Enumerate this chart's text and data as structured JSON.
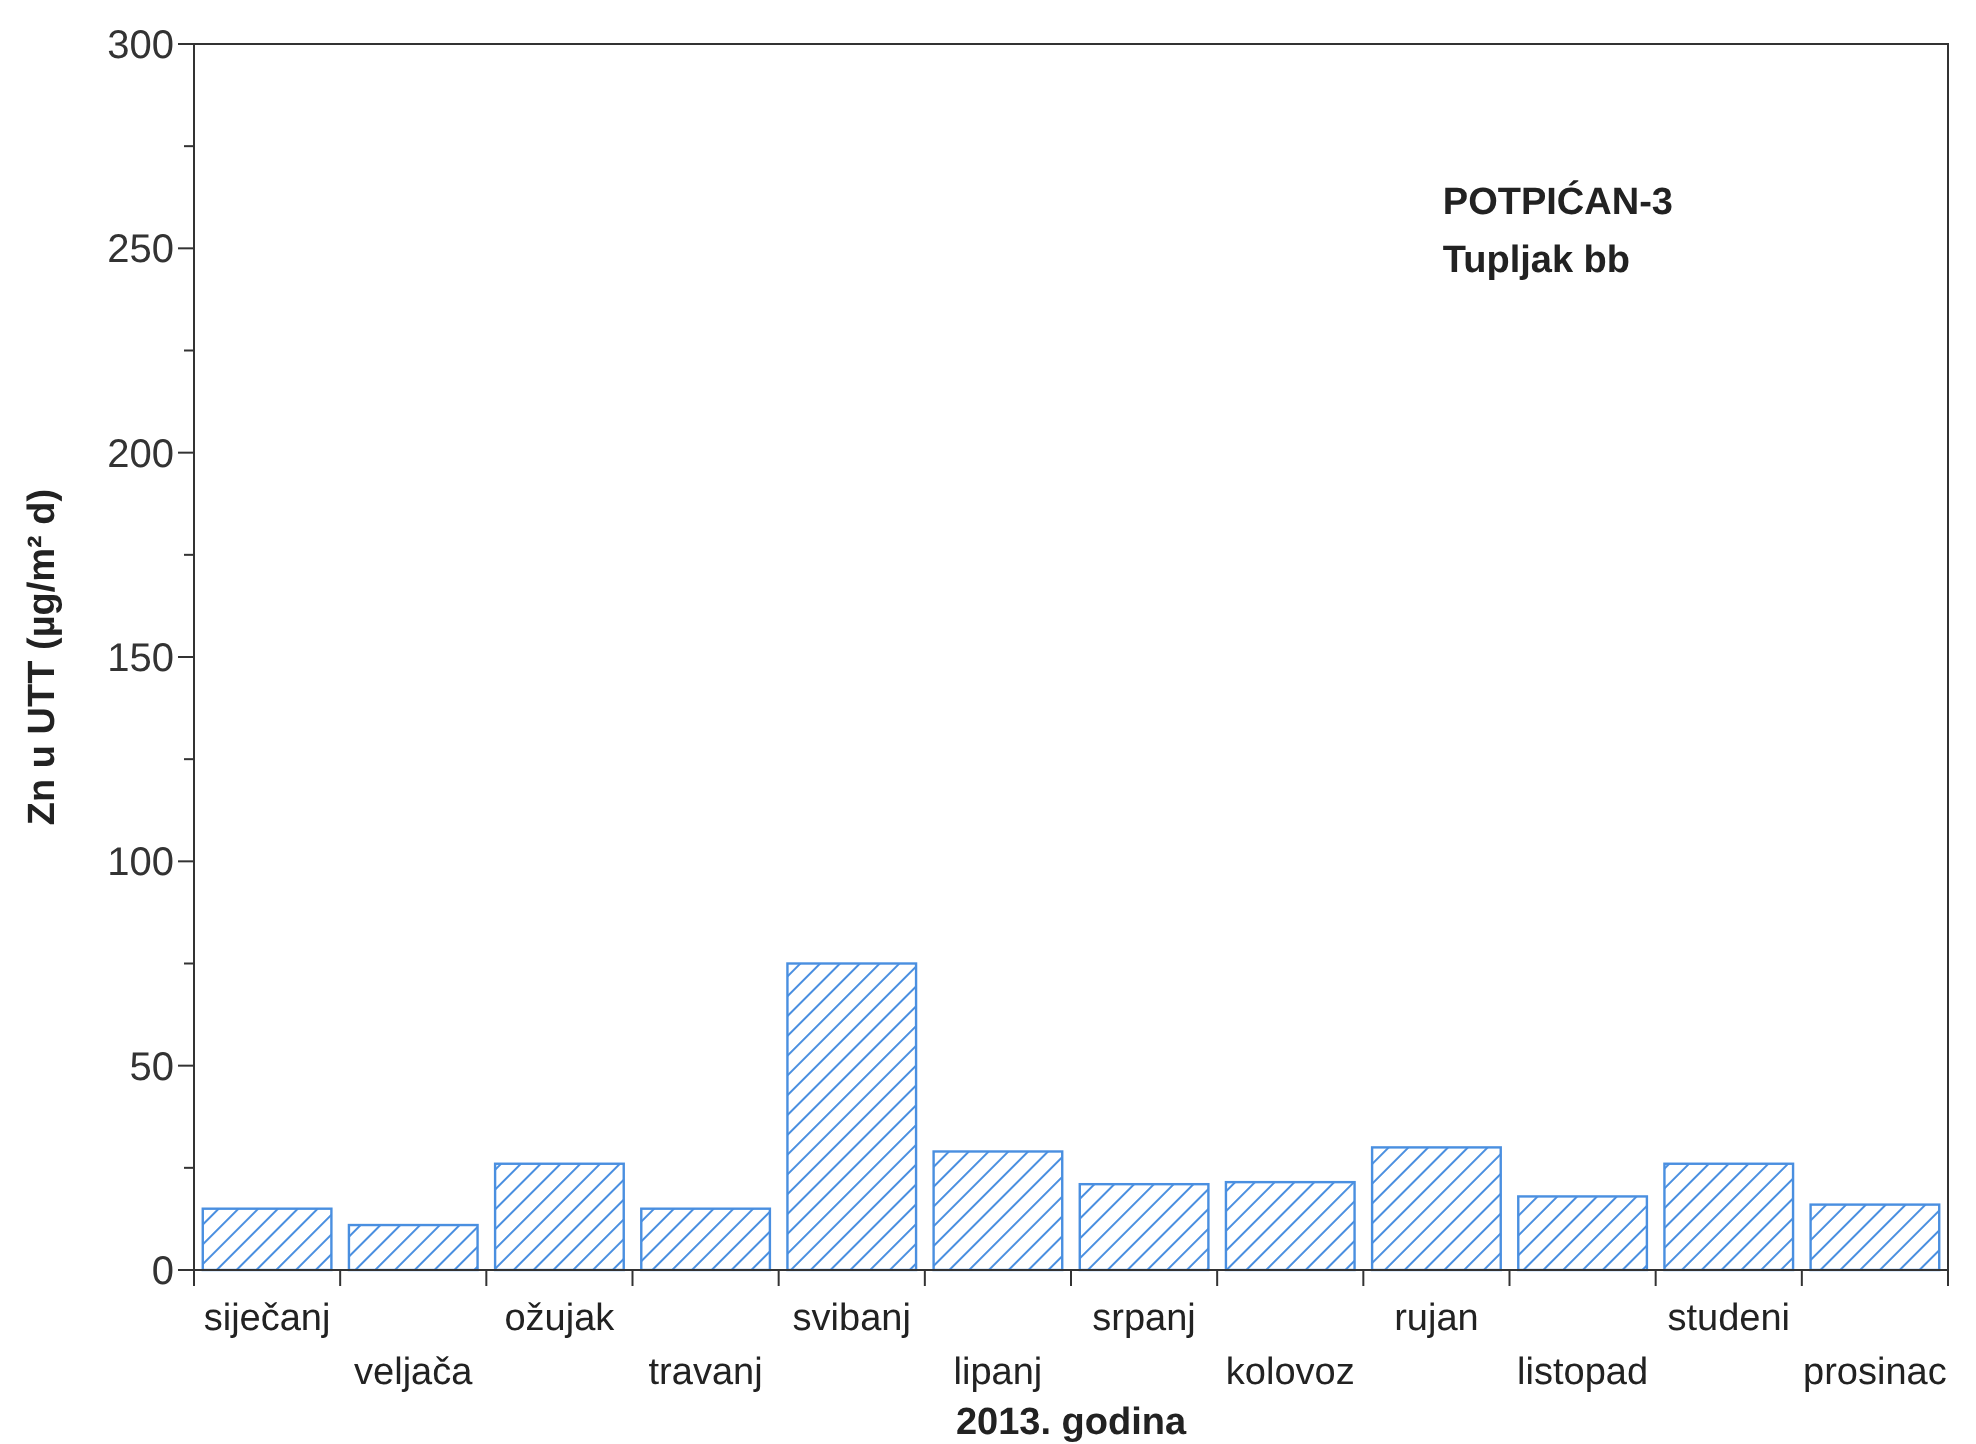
{
  "chart_data": {
    "type": "bar",
    "xlabel": "2013. godina",
    "ylabel": "Zn u UTT (µg/m² d)",
    "annotations": [
      "POTPIĆAN-3",
      "Tupljak bb"
    ],
    "categories": [
      "siječanj",
      "veljača",
      "ožujak",
      "travanj",
      "svibanj",
      "lipanj",
      "srpanj",
      "kolovoz",
      "rujan",
      "listopad",
      "studeni",
      "prosinac"
    ],
    "values": [
      15,
      11,
      26,
      15,
      75,
      29,
      21,
      21.5,
      30,
      18,
      26,
      16
    ],
    "color": "#4a8fe0",
    "ylim": [
      0,
      300
    ],
    "yticks": [
      0,
      {
        "value": 25,
        "label": null
      },
      50,
      {
        "value": 75,
        "label": null
      },
      100,
      {
        "value": 125,
        "label": null
      },
      150,
      {
        "value": 175,
        "label": null
      },
      200,
      {
        "value": 225,
        "label": null
      },
      250,
      {
        "value": 275,
        "label": null
      },
      300
    ],
    "grid": false
  }
}
